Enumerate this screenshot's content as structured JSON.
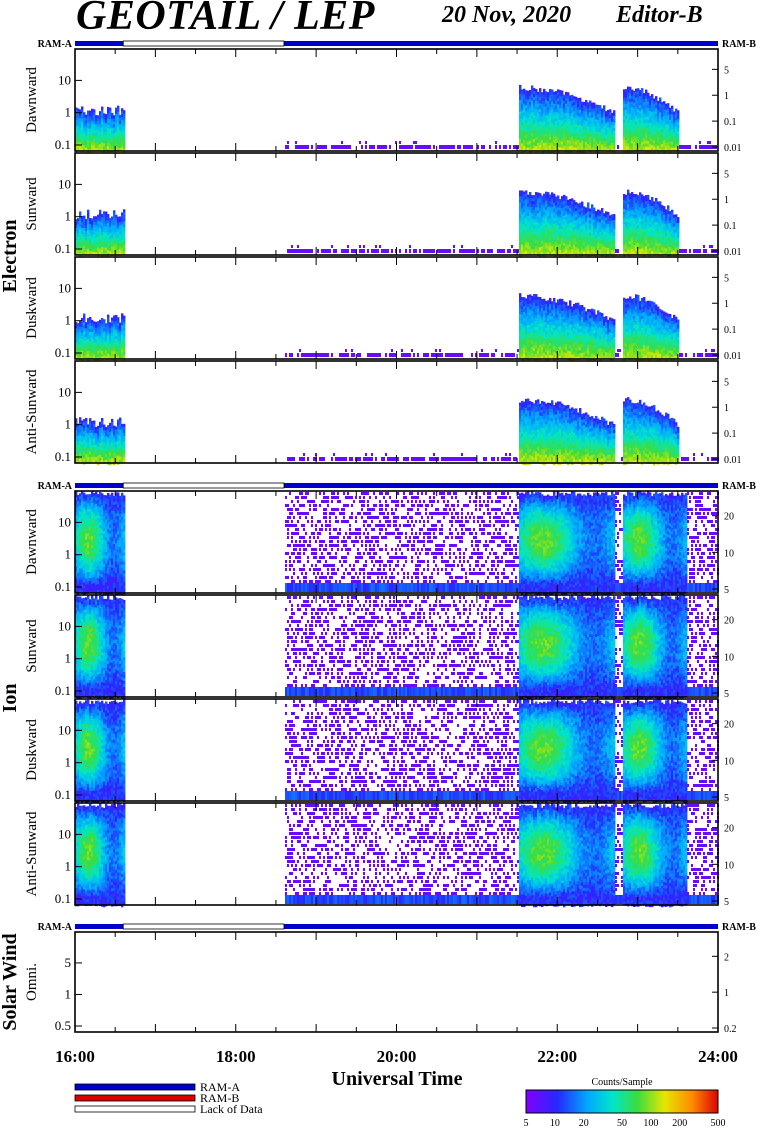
{
  "header": {
    "title": "GEOTAIL / LEP",
    "date": "20 Nov, 2020",
    "editor": "Editor-B"
  },
  "chart_data": {
    "type": "heatmap",
    "xlabel": "Universal Time",
    "x_ticks": [
      "16:00",
      "18:00",
      "20:00",
      "22:00",
      "24:00"
    ],
    "x_range_hours": [
      16,
      24
    ],
    "groups": [
      {
        "name": "Electron",
        "ram_bar": {
          "left": "RAM-A",
          "right": "RAM-B"
        },
        "panels": [
          {
            "label": "Dawnward",
            "left_ticks": [
              "0.1",
              "1",
              "10"
            ],
            "right_ticks": [
              "0.01",
              "0.1",
              "1",
              "5"
            ],
            "yscale": "log"
          },
          {
            "label": "Sunward",
            "left_ticks": [
              "0.1",
              "1",
              "10"
            ],
            "right_ticks": [
              "0.01",
              "0.1",
              "1",
              "5"
            ],
            "yscale": "log"
          },
          {
            "label": "Duskward",
            "left_ticks": [
              "0.1",
              "1",
              "10"
            ],
            "right_ticks": [
              "0.01",
              "0.1",
              "1",
              "5"
            ],
            "yscale": "log"
          },
          {
            "label": "Anti-Sunward",
            "left_ticks": [
              "0.1",
              "1",
              "10"
            ],
            "right_ticks": [
              "0.01",
              "0.1",
              "1",
              "5"
            ],
            "yscale": "log"
          }
        ]
      },
      {
        "name": "Ion",
        "ram_bar": {
          "left": "RAM-A",
          "right": "RAM-B"
        },
        "panels": [
          {
            "label": "Dawnward",
            "left_ticks": [
              "0.1",
              "1",
              "10"
            ],
            "right_ticks": [
              "5",
              "10",
              "20"
            ],
            "yscale": "log"
          },
          {
            "label": "Sunward",
            "left_ticks": [
              "0.1",
              "1",
              "10"
            ],
            "right_ticks": [
              "5",
              "10",
              "20"
            ],
            "yscale": "log"
          },
          {
            "label": "Duskward",
            "left_ticks": [
              "0.1",
              "1",
              "10"
            ],
            "right_ticks": [
              "5",
              "10",
              "20"
            ],
            "yscale": "log"
          },
          {
            "label": "Anti-Sunward",
            "left_ticks": [
              "0.1",
              "1",
              "10"
            ],
            "right_ticks": [
              "5",
              "10",
              "20"
            ],
            "yscale": "log"
          }
        ]
      },
      {
        "name": "Solar Wind",
        "ram_bar": {
          "left": "RAM-A",
          "right": "RAM-B"
        },
        "panels": [
          {
            "label": "Omni.",
            "left_ticks": [
              "0.5",
              "1",
              "5"
            ],
            "right_ticks": [
              "0.2",
              "1",
              "2"
            ],
            "yscale": "log"
          }
        ]
      }
    ],
    "data_coverage_hours": [
      [
        16.0,
        16.6
      ],
      [
        18.6,
        24.0
      ]
    ],
    "lack_of_data_hours": [
      [
        16.6,
        18.6
      ]
    ],
    "electron_events_hours": [
      [
        16.0,
        16.6
      ],
      [
        21.5,
        22.7
      ],
      [
        22.8,
        23.5
      ]
    ],
    "ion_events_hours": [
      [
        16.0,
        16.6
      ],
      [
        21.5,
        22.7
      ],
      [
        22.8,
        23.6
      ]
    ],
    "legend": {
      "items": [
        {
          "label": "RAM-A",
          "color": "#0000cc"
        },
        {
          "label": "RAM-B",
          "color": "#dd0000"
        },
        {
          "label": "Lack of Data",
          "color": "#ffffff"
        }
      ]
    },
    "colorbar": {
      "title": "Counts/Sample",
      "ticks": [
        "5",
        "10",
        "20",
        "50",
        "100",
        "200",
        "500"
      ],
      "scale": "log",
      "range": [
        5,
        500
      ]
    }
  }
}
